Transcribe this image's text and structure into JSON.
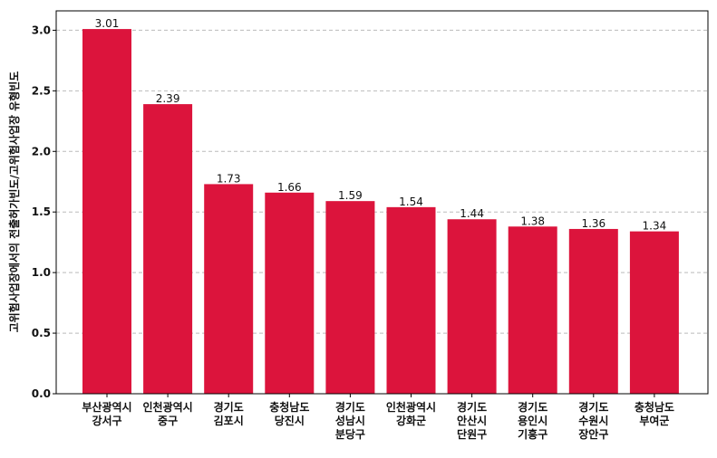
{
  "chart_data": {
    "type": "bar",
    "y_label": "고위험사업장에서의 전출허가빈도/고위험사업장 유형빈도",
    "categories": [
      [
        "부산광역시",
        "강서구"
      ],
      [
        "인천광역시",
        "중구"
      ],
      [
        "경기도",
        "김포시"
      ],
      [
        "충청남도",
        "당진시"
      ],
      [
        "경기도",
        "성남시",
        "분당구"
      ],
      [
        "인천광역시",
        "강화군"
      ],
      [
        "경기도",
        "안산시",
        "단원구"
      ],
      [
        "경기도",
        "용인시",
        "기흥구"
      ],
      [
        "경기도",
        "수원시",
        "장안구"
      ],
      [
        "충청남도",
        "부여군"
      ]
    ],
    "values": [
      3.01,
      2.39,
      1.73,
      1.66,
      1.59,
      1.54,
      1.44,
      1.38,
      1.36,
      1.34
    ],
    "color": "#dc143c",
    "ylim": [
      0,
      3.16
    ],
    "yticks": [
      {
        "value": 0,
        "label": "0.0"
      },
      {
        "value": 0.5,
        "label": "0.5"
      },
      {
        "value": 1,
        "label": "1.0"
      },
      {
        "value": 1.5,
        "label": "1.5"
      },
      {
        "value": 2,
        "label": "2.0"
      },
      {
        "value": 2.5,
        "label": "2.5"
      },
      {
        "value": 3,
        "label": "3.0"
      }
    ],
    "grid": true
  }
}
